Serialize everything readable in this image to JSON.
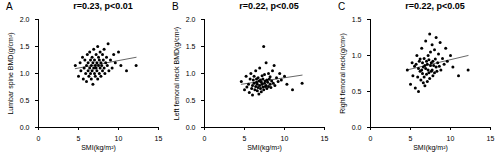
{
  "chart_data": [
    {
      "type": "scatter",
      "annotations": [
        "A"
      ],
      "title": "r=0.23, p<0.01",
      "x_label": "SMI(kg/m²)",
      "y_label": "Lumbar spine BMD(g/cm²)",
      "color": "#000000",
      "marker": "circle",
      "xlim": [
        0,
        15
      ],
      "xticks": [
        0,
        5,
        10,
        15
      ],
      "ylim": [
        0,
        2
      ],
      "yticks": [
        {
          "value": 0,
          "label": "0.0"
        },
        0.5,
        {
          "value": 1,
          "label": "1.0"
        },
        1.5,
        {
          "value": 2,
          "label": "2.0"
        }
      ],
      "x": [
        4.6,
        5.0,
        5.2,
        5.3,
        5.5,
        5.6,
        5.7,
        5.8,
        5.9,
        6.0,
        6.0,
        6.1,
        6.2,
        6.2,
        6.3,
        6.4,
        6.4,
        6.5,
        6.5,
        6.6,
        6.6,
        6.7,
        6.7,
        6.8,
        6.8,
        6.9,
        6.9,
        7.0,
        7.0,
        7.1,
        7.1,
        7.2,
        7.2,
        7.3,
        7.3,
        7.4,
        7.4,
        7.5,
        7.5,
        7.6,
        7.6,
        7.7,
        7.7,
        7.8,
        7.8,
        7.9,
        8.0,
        8.0,
        8.1,
        8.2,
        8.2,
        8.3,
        8.4,
        8.5,
        8.6,
        8.7,
        8.8,
        9.0,
        9.2,
        9.4,
        9.6,
        10.0,
        10.3,
        11.0,
        12.2
      ],
      "values": [
        1.15,
        0.95,
        1.2,
        1.05,
        1.3,
        0.9,
        1.1,
        1.25,
        1.0,
        1.15,
        0.85,
        1.35,
        1.05,
        1.2,
        0.95,
        1.1,
        1.4,
        1.0,
        1.25,
        0.9,
        1.15,
        1.05,
        1.3,
        1.2,
        0.8,
        1.1,
        1.45,
        1.0,
        1.25,
        1.15,
        0.95,
        1.35,
        1.1,
        1.05,
        1.2,
        1.5,
        0.9,
        1.15,
        1.3,
        1.0,
        1.25,
        1.1,
        1.4,
        0.95,
        1.2,
        1.15,
        1.05,
        1.35,
        1.25,
        1.1,
        1.45,
        1.0,
        1.2,
        1.3,
        1.15,
        1.55,
        1.05,
        1.25,
        1.1,
        1.35,
        1.2,
        1.4,
        1.15,
        1.05,
        1.15
      ],
      "trend_line": {
        "x": [
          4.6,
          12.2
        ],
        "y": [
          1.09,
          1.3
        ]
      }
    },
    {
      "type": "scatter",
      "annotations": [
        "B"
      ],
      "title": "r=0.22, p<0.05",
      "x_label": "SMI(kg/m²)",
      "y_label": "Left femoral neck BMD(g/cm²)",
      "color": "#000000",
      "marker": "circle",
      "xlim": [
        0,
        15
      ],
      "xticks": [
        0,
        5,
        10,
        15
      ],
      "ylim": [
        0,
        2
      ],
      "yticks": [
        {
          "value": 0,
          "label": "0.0"
        },
        0.5,
        {
          "value": 1,
          "label": "1.0"
        },
        1.5,
        {
          "value": 2,
          "label": "2.0"
        }
      ],
      "x": [
        4.6,
        5.0,
        5.2,
        5.3,
        5.5,
        5.6,
        5.7,
        5.8,
        5.9,
        6.0,
        6.0,
        6.1,
        6.2,
        6.2,
        6.3,
        6.4,
        6.4,
        6.5,
        6.5,
        6.6,
        6.6,
        6.7,
        6.7,
        6.8,
        6.8,
        6.9,
        6.9,
        7.0,
        7.0,
        7.1,
        7.1,
        7.2,
        7.2,
        7.3,
        7.3,
        7.4,
        7.4,
        7.5,
        7.5,
        7.6,
        7.6,
        7.7,
        7.7,
        7.8,
        7.8,
        7.9,
        8.0,
        8.0,
        8.1,
        8.2,
        8.2,
        8.3,
        8.4,
        8.5,
        8.6,
        8.7,
        8.8,
        9.0,
        9.2,
        9.4,
        9.6,
        10.0,
        10.3,
        11.0,
        12.2
      ],
      "values": [
        0.85,
        0.7,
        0.95,
        0.75,
        0.8,
        0.65,
        0.9,
        1.0,
        0.72,
        0.78,
        0.6,
        0.88,
        0.82,
        0.95,
        0.7,
        0.76,
        1.05,
        0.84,
        0.9,
        0.68,
        0.8,
        0.74,
        0.92,
        0.86,
        0.62,
        0.78,
        1.1,
        0.72,
        0.88,
        0.84,
        0.66,
        0.96,
        0.8,
        0.75,
        0.9,
        1.5,
        0.7,
        0.82,
        0.98,
        0.76,
        0.86,
        0.78,
        1.2,
        0.72,
        0.88,
        0.84,
        0.76,
        1.0,
        0.9,
        0.8,
        0.94,
        0.74,
        0.86,
        1.05,
        0.82,
        1.15,
        0.78,
        0.92,
        0.85,
        1.0,
        0.88,
        0.95,
        0.8,
        0.7,
        0.82
      ],
      "trend_line": {
        "x": [
          4.6,
          12.2
        ],
        "y": [
          0.8,
          0.97
        ]
      }
    },
    {
      "type": "scatter",
      "annotations": [
        "C"
      ],
      "title": "r=0.22, p<0.05",
      "x_label": "SMI(kg/m²)",
      "y_label": "Right femoral neck(g/cm²)",
      "color": "#000000",
      "marker": "circle",
      "xlim": [
        0,
        15
      ],
      "xticks": [
        0,
        5,
        10,
        15
      ],
      "ylim": [
        0,
        1.5
      ],
      "yticks": [
        {
          "value": 0,
          "label": "0.0"
        },
        0.5,
        {
          "value": 1,
          "label": "1.0"
        },
        1.5
      ],
      "x": [
        4.6,
        5.0,
        5.2,
        5.3,
        5.5,
        5.6,
        5.7,
        5.8,
        5.9,
        6.0,
        6.0,
        6.1,
        6.2,
        6.2,
        6.3,
        6.4,
        6.4,
        6.5,
        6.5,
        6.6,
        6.6,
        6.7,
        6.7,
        6.8,
        6.8,
        6.9,
        6.9,
        7.0,
        7.0,
        7.1,
        7.1,
        7.2,
        7.2,
        7.3,
        7.3,
        7.4,
        7.4,
        7.5,
        7.5,
        7.6,
        7.6,
        7.7,
        7.7,
        7.8,
        7.8,
        7.9,
        8.0,
        8.0,
        8.1,
        8.2,
        8.2,
        8.3,
        8.4,
        8.5,
        8.6,
        8.7,
        8.8,
        9.0,
        9.2,
        9.4,
        9.6,
        10.0,
        10.3,
        11.0,
        12.2
      ],
      "values": [
        0.8,
        0.6,
        0.9,
        0.72,
        0.85,
        0.55,
        0.88,
        1.0,
        0.7,
        0.82,
        0.5,
        0.92,
        0.78,
        0.95,
        0.66,
        0.8,
        1.1,
        0.75,
        0.9,
        0.62,
        0.84,
        0.7,
        0.96,
        0.86,
        0.58,
        0.82,
        1.2,
        0.74,
        0.92,
        0.88,
        0.64,
        1.0,
        0.8,
        0.76,
        0.94,
        1.3,
        0.68,
        0.86,
        1.05,
        0.78,
        0.9,
        0.8,
        1.15,
        0.72,
        0.92,
        0.86,
        0.76,
        1.08,
        0.95,
        0.84,
        1.25,
        0.78,
        0.9,
        1.02,
        0.85,
        1.18,
        0.8,
        0.96,
        0.88,
        1.1,
        0.92,
        1.0,
        0.84,
        0.72,
        0.8
      ],
      "trend_line": {
        "x": [
          4.6,
          12.2
        ],
        "y": [
          0.8,
          1.0
        ]
      }
    }
  ]
}
